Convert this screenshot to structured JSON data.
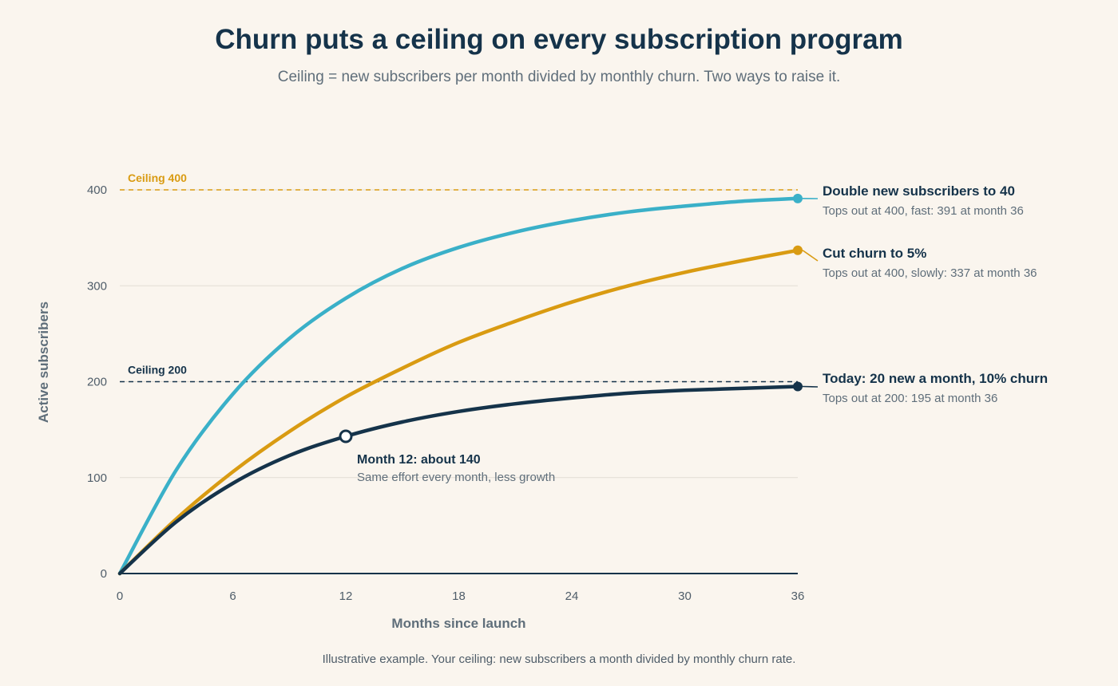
{
  "title": "Churn puts a ceiling on every subscription program",
  "subtitle": "Ceiling = new subscribers per month divided by monthly churn. Two ways to raise it.",
  "footnote": "Illustrative example. Your ceiling: new subscribers a month divided by monthly churn rate.",
  "chart_data": {
    "type": "line",
    "xlabel": "Months since launch",
    "ylabel": "Active subscribers",
    "xlim": [
      0,
      36
    ],
    "ylim": [
      0,
      400
    ],
    "xticks": [
      0,
      6,
      12,
      18,
      24,
      30,
      36
    ],
    "yticks": [
      0,
      100,
      200,
      300,
      400
    ],
    "grid": "horizontal",
    "series": [
      {
        "key": "double",
        "name": "Double new subscribers to 40",
        "note": "Tops out at 400, fast: 391 at month 36",
        "color": "#3ab0c8",
        "x": [
          0,
          3,
          6,
          9,
          12,
          15,
          18,
          21,
          24,
          27,
          30,
          33,
          36
        ],
        "y": [
          0,
          108,
          187,
          245,
          287,
          318,
          340,
          356,
          368,
          377,
          383,
          388,
          391
        ]
      },
      {
        "key": "cut_churn",
        "name": "Cut churn to 5%",
        "note": "Tops out at 400, slowly: 337 at month 36",
        "color": "#d99b12",
        "x": [
          0,
          3,
          6,
          9,
          12,
          15,
          18,
          21,
          24,
          27,
          30,
          33,
          36
        ],
        "y": [
          0,
          57,
          106,
          148,
          184,
          214,
          241,
          263,
          283,
          300,
          314,
          326,
          337
        ]
      },
      {
        "key": "today",
        "name": "Today: 20 new a month, 10% churn",
        "note": "Tops out at 200: 195 at month 36",
        "color": "#15334a",
        "x": [
          0,
          3,
          6,
          9,
          12,
          15,
          18,
          21,
          24,
          27,
          30,
          33,
          36
        ],
        "y": [
          0,
          54,
          94,
          123,
          143,
          158,
          169,
          177,
          183,
          188,
          191,
          193,
          195
        ]
      }
    ],
    "reference_lines": [
      {
        "y": 400,
        "label": "Ceiling 400",
        "color": "#d99b12"
      },
      {
        "y": 200,
        "label": "Ceiling 200",
        "color": "#15334a"
      }
    ],
    "annotations": [
      {
        "series": "today",
        "x": 12,
        "y": 143,
        "title": "Month 12: about 140",
        "text": "Same effort every month, less growth"
      }
    ]
  }
}
